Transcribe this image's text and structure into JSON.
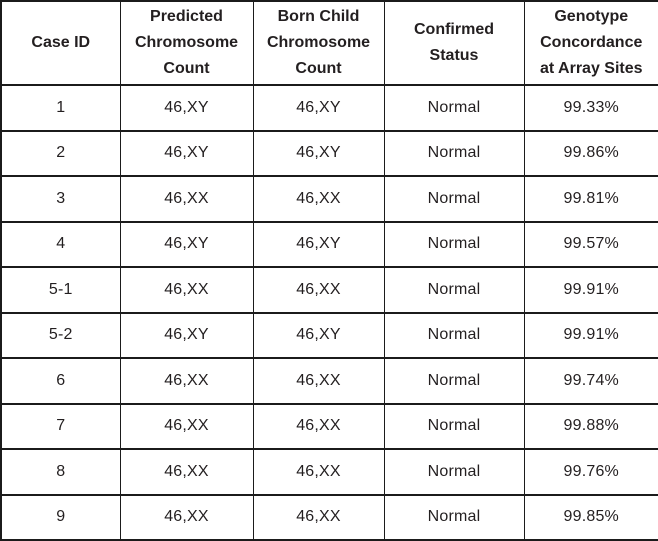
{
  "colors": {
    "background": "#ffffff",
    "border": "#1b1b1b",
    "text": "#231f20"
  },
  "table": {
    "columns": [
      {
        "key": "case_id",
        "label": "Case ID"
      },
      {
        "key": "predicted_chromosome_count",
        "label": "Predicted\nChromosome\nCount"
      },
      {
        "key": "born_child_chromosome_count",
        "label": "Born Child\nChromosome\nCount"
      },
      {
        "key": "confirmed_status",
        "label": "Confirmed\nStatus"
      },
      {
        "key": "genotype_concordance_at_array_sites",
        "label": "Genotype\nConcordance\nat Array Sites"
      }
    ],
    "rows": [
      [
        "1",
        "46,XY",
        "46,XY",
        "Normal",
        "99.33%"
      ],
      [
        "2",
        "46,XY",
        "46,XY",
        "Normal",
        "99.86%"
      ],
      [
        "3",
        "46,XX",
        "46,XX",
        "Normal",
        "99.81%"
      ],
      [
        "4",
        "46,XY",
        "46,XY",
        "Normal",
        "99.57%"
      ],
      [
        "5-1",
        "46,XX",
        "46,XX",
        "Normal",
        "99.91%"
      ],
      [
        "5-2",
        "46,XY",
        "46,XY",
        "Normal",
        "99.91%"
      ],
      [
        "6",
        "46,XX",
        "46,XX",
        "Normal",
        "99.74%"
      ],
      [
        "7",
        "46,XX",
        "46,XX",
        "Normal",
        "99.88%"
      ],
      [
        "8",
        "46,XX",
        "46,XX",
        "Normal",
        "99.76%"
      ],
      [
        "9",
        "46,XX",
        "46,XX",
        "Normal",
        "99.85%"
      ]
    ]
  },
  "chart_data": {
    "type": "table",
    "columns": [
      "Case ID",
      "Predicted Chromosome Count",
      "Born Child Chromosome Count",
      "Confirmed Status",
      "Genotype Concordance at Array Sites"
    ],
    "rows": [
      [
        "1",
        "46,XY",
        "46,XY",
        "Normal",
        "99.33%"
      ],
      [
        "2",
        "46,XY",
        "46,XY",
        "Normal",
        "99.86%"
      ],
      [
        "3",
        "46,XX",
        "46,XX",
        "Normal",
        "99.81%"
      ],
      [
        "4",
        "46,XY",
        "46,XY",
        "Normal",
        "99.57%"
      ],
      [
        "5-1",
        "46,XX",
        "46,XX",
        "Normal",
        "99.91%"
      ],
      [
        "5-2",
        "46,XY",
        "46,XY",
        "Normal",
        "99.91%"
      ],
      [
        "6",
        "46,XX",
        "46,XX",
        "Normal",
        "99.74%"
      ],
      [
        "7",
        "46,XX",
        "46,XX",
        "Normal",
        "99.88%"
      ],
      [
        "8",
        "46,XX",
        "46,XX",
        "Normal",
        "99.76%"
      ],
      [
        "9",
        "46,XX",
        "46,XX",
        "Normal",
        "99.85%"
      ]
    ],
    "concordance_values_percent": [
      99.33,
      99.86,
      99.81,
      99.57,
      99.91,
      99.91,
      99.74,
      99.88,
      99.76,
      99.85
    ]
  }
}
